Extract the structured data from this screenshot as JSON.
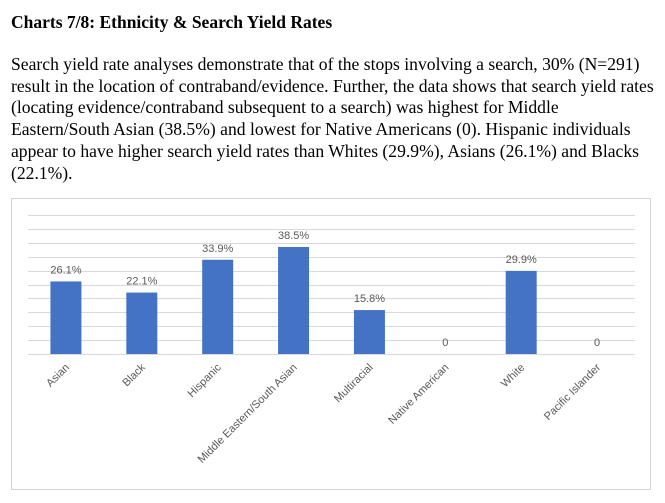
{
  "header": {
    "title": "Charts 7/8: Ethnicity & Search Yield Rates"
  },
  "body": {
    "paragraph": "Search yield rate analyses demonstrate that of the stops involving a search, 30% (N=291) result in the location of contraband/evidence.  Further, the data shows that search yield rates (locating evidence/contraband subsequent to a search) was highest for Middle Eastern/South Asian (38.5%) and lowest for Native Americans (0). Hispanic individuals appear to have higher search yield rates than Whites (29.9%), Asians (26.1%) and Blacks (22.1%)."
  },
  "chart_data": {
    "type": "bar",
    "title": "",
    "xlabel": "",
    "ylabel": "",
    "categories": [
      "Asian",
      "Black",
      "Hispanic",
      "Middle Eastern/South Asian",
      "Multiracial",
      "Native American",
      "White",
      "Pacific Islander"
    ],
    "values": [
      26.1,
      22.1,
      33.9,
      38.5,
      15.8,
      0,
      29.9,
      0
    ],
    "data_labels": [
      "26.1%",
      "22.1%",
      "33.9%",
      "38.5%",
      "15.8%",
      "0",
      "29.9%",
      "0"
    ],
    "unit": "%",
    "ylim": [
      0,
      50
    ],
    "y_tick_step": 5,
    "y_axis_labels_visible": false,
    "grid": true,
    "legend": "none",
    "bar_color": "#4472C4",
    "label_color": "#595959",
    "gridline_color": "#d9d9d9",
    "x_label_rotation_deg": -45
  }
}
